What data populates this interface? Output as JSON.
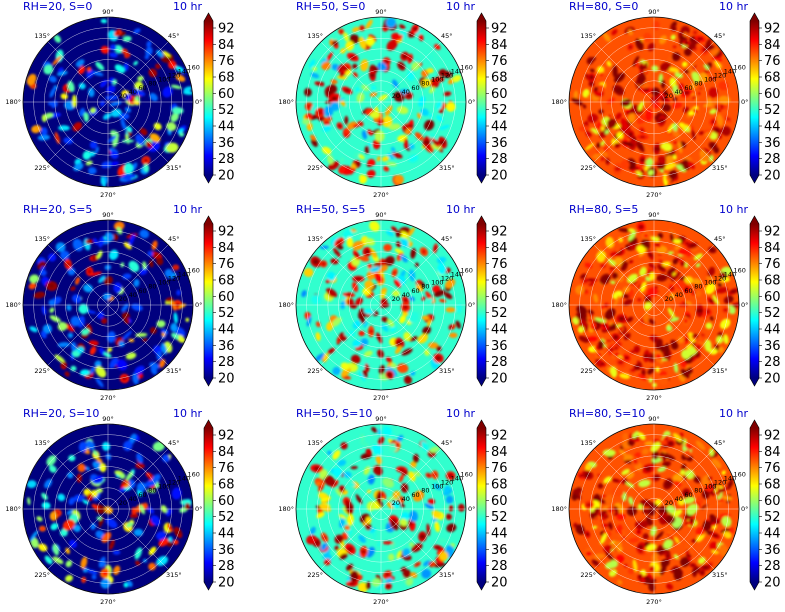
{
  "figure": {
    "time_label": "10 hr",
    "angle_labels": [
      "90°",
      "45°",
      "0°",
      "315°",
      "270°",
      "225°",
      "180°",
      "135°"
    ],
    "angle_values": [
      90,
      45,
      0,
      315,
      270,
      225,
      180,
      135
    ],
    "colorbar": {
      "ticks": [
        "92",
        "84",
        "76",
        "68",
        "60",
        "52",
        "44",
        "36",
        "28",
        "20"
      ],
      "min": 20,
      "max": 98,
      "extend": "both",
      "colormap": "jet"
    },
    "colormap_stops": [
      "#00007f",
      "#0000ff",
      "#007fff",
      "#00ffff",
      "#7fff7f",
      "#ffff00",
      "#ff7f00",
      "#ff0000",
      "#7f0000"
    ]
  },
  "chart_data": [
    {
      "type": "heatmap",
      "projection": "polar",
      "title": "RH=20, S=0",
      "subtitle": "10 hr",
      "rh": 20,
      "s": 0,
      "r_ticks": [
        "20",
        "40",
        "60",
        "80",
        "100",
        "120",
        "140",
        "160"
      ],
      "rlim": [
        0,
        160
      ],
      "color_range": [
        20,
        98
      ]
    },
    {
      "type": "heatmap",
      "projection": "polar",
      "title": "RH=50, S=0",
      "subtitle": "10 hr",
      "rh": 50,
      "s": 0,
      "r_ticks": [
        "20",
        "40",
        "60",
        "80",
        "100",
        "120",
        "140",
        "160"
      ],
      "rlim": [
        0,
        160
      ],
      "color_range": [
        20,
        98
      ]
    },
    {
      "type": "heatmap",
      "projection": "polar",
      "title": "RH=80, S=0",
      "subtitle": "10 hr",
      "rh": 80,
      "s": 0,
      "r_ticks": [
        "20",
        "40",
        "60",
        "80",
        "100",
        "120",
        "140",
        "160"
      ],
      "rlim": [
        0,
        160
      ],
      "color_range": [
        20,
        98
      ]
    },
    {
      "type": "heatmap",
      "projection": "polar",
      "title": "RH=20, S=5",
      "subtitle": "10 hr",
      "rh": 20,
      "s": 5,
      "r_ticks": [
        "20",
        "40",
        "60",
        "80",
        "100",
        "120",
        "140",
        "160"
      ],
      "rlim": [
        0,
        160
      ],
      "color_range": [
        20,
        98
      ]
    },
    {
      "type": "heatmap",
      "projection": "polar",
      "title": "RH=50, S=5",
      "subtitle": "10 hr",
      "rh": 50,
      "s": 5,
      "r_ticks": [
        "20",
        "40",
        "60",
        "80",
        "100",
        "120",
        "140",
        "160"
      ],
      "rlim": [
        0,
        160
      ],
      "color_range": [
        20,
        98
      ]
    },
    {
      "type": "heatmap",
      "projection": "polar",
      "title": "RH=80, S=5",
      "subtitle": "10 hr",
      "rh": 80,
      "s": 5,
      "r_ticks": [
        "20",
        "40",
        "60",
        "80",
        "100",
        "120",
        "140",
        "160"
      ],
      "rlim": [
        0,
        160
      ],
      "color_range": [
        20,
        98
      ]
    },
    {
      "type": "heatmap",
      "projection": "polar",
      "title": "RH=20, S=10",
      "subtitle": "10 hr",
      "rh": 20,
      "s": 10,
      "r_ticks": [
        "20",
        "40",
        "60",
        "80",
        "100",
        "120",
        "140",
        "160"
      ],
      "rlim": [
        0,
        160
      ],
      "color_range": [
        20,
        98
      ]
    },
    {
      "type": "heatmap",
      "projection": "polar",
      "title": "RH=50, S=10",
      "subtitle": "10 hr",
      "rh": 50,
      "s": 10,
      "r_ticks": [
        "20",
        "40",
        "60",
        "80",
        "100",
        "120",
        "140",
        "160"
      ],
      "rlim": [
        0,
        160
      ],
      "color_range": [
        20,
        98
      ]
    },
    {
      "type": "heatmap",
      "projection": "polar",
      "title": "RH=80, S=10",
      "subtitle": "10 hr",
      "rh": 80,
      "s": 10,
      "r_ticks": [
        "20",
        "40",
        "60",
        "80",
        "100",
        "120",
        "140",
        "160"
      ],
      "rlim": [
        0,
        160
      ],
      "color_range": [
        20,
        98
      ]
    }
  ]
}
